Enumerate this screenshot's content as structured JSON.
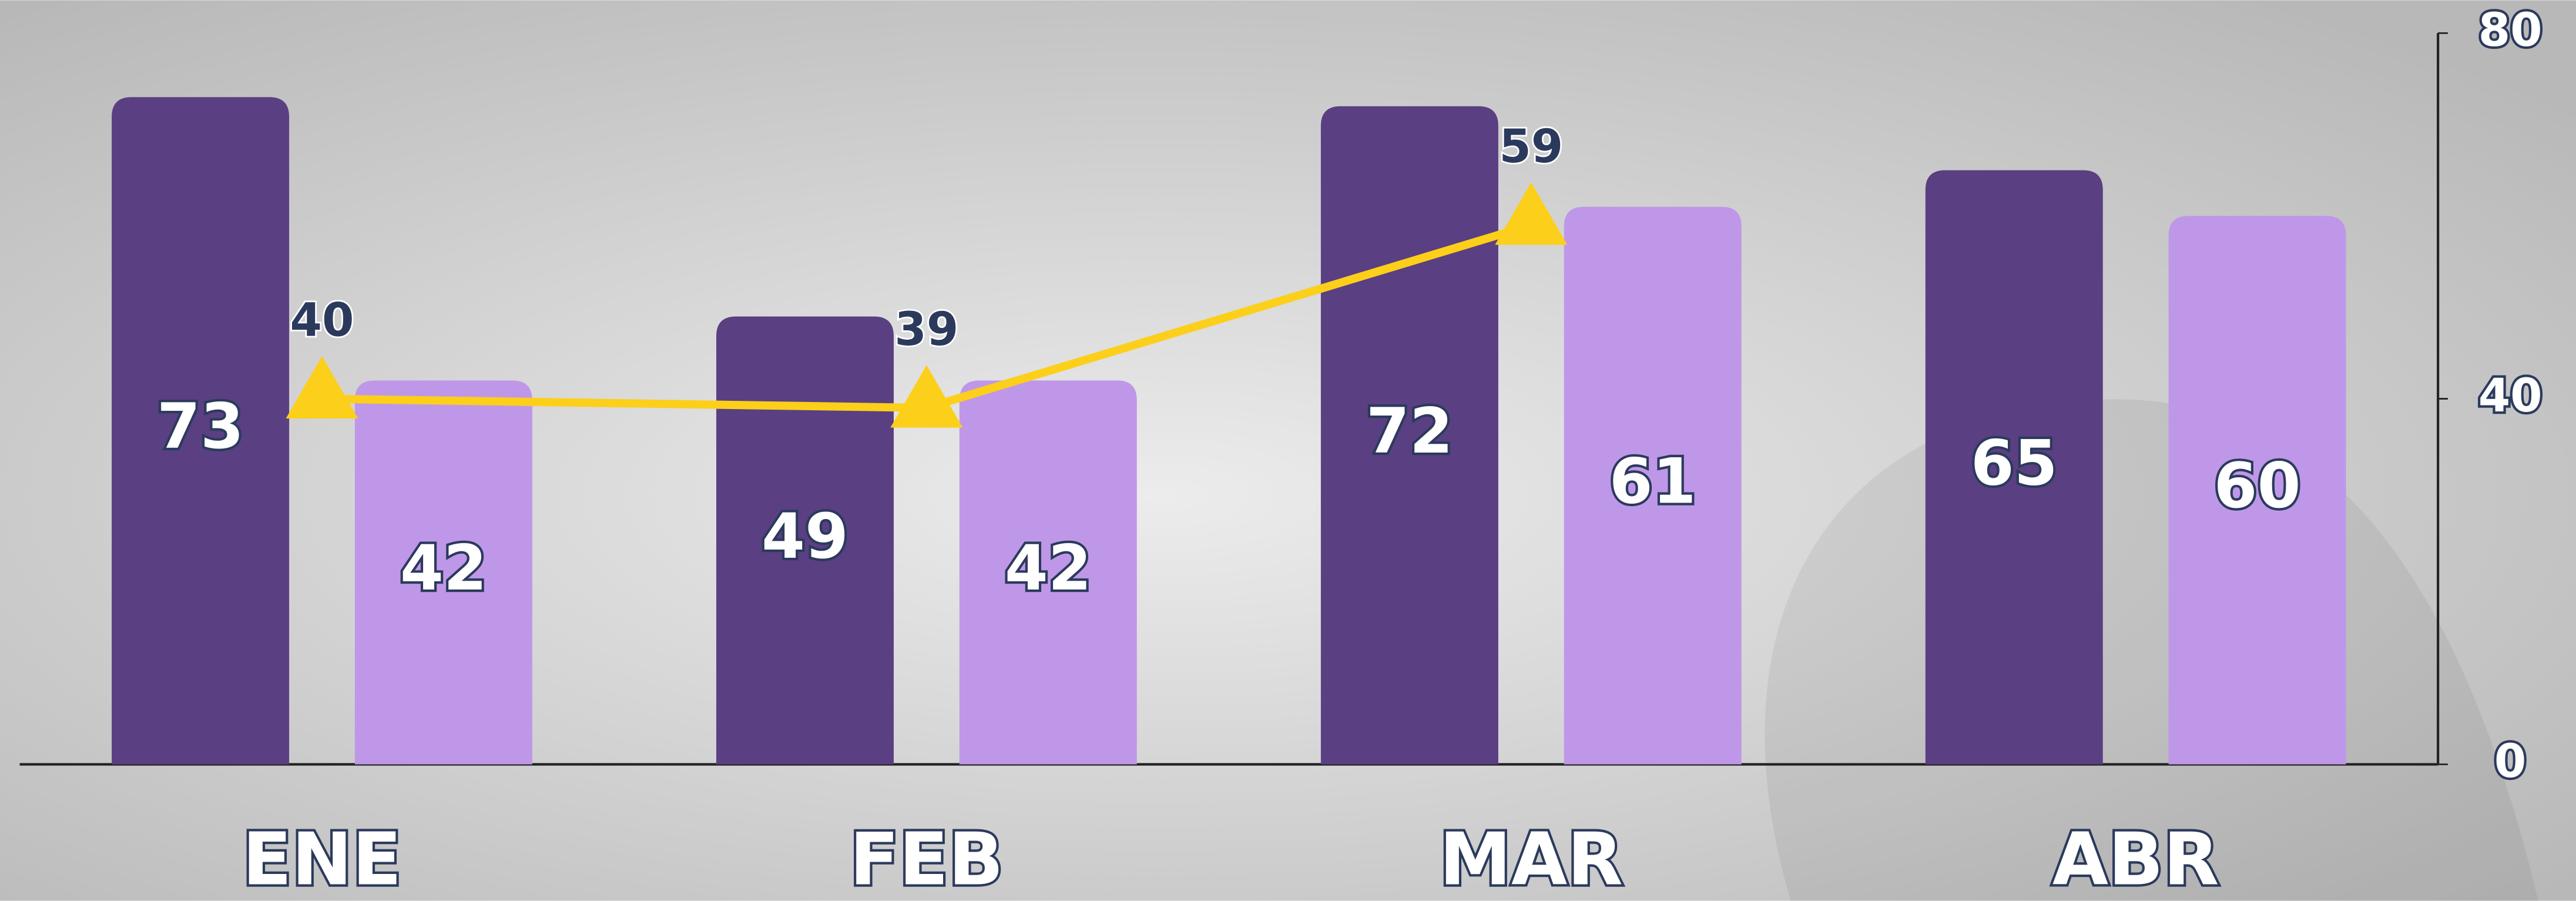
{
  "chart_data": {
    "type": "bar",
    "categories": [
      "ENE",
      "FEB",
      "MAR",
      "ABR"
    ],
    "series": [
      {
        "type": "bar",
        "color": "#5a3f82",
        "values": [
          73,
          49,
          72,
          65
        ]
      },
      {
        "type": "bar",
        "color": "#bf97e8",
        "values": [
          42,
          42,
          61,
          60
        ]
      },
      {
        "type": "line",
        "color": "#fccf1a",
        "values": [
          40,
          39,
          59,
          null
        ]
      }
    ],
    "ylim": [
      0,
      80
    ],
    "yticks": [
      0,
      40,
      80
    ],
    "grid": false
  }
}
